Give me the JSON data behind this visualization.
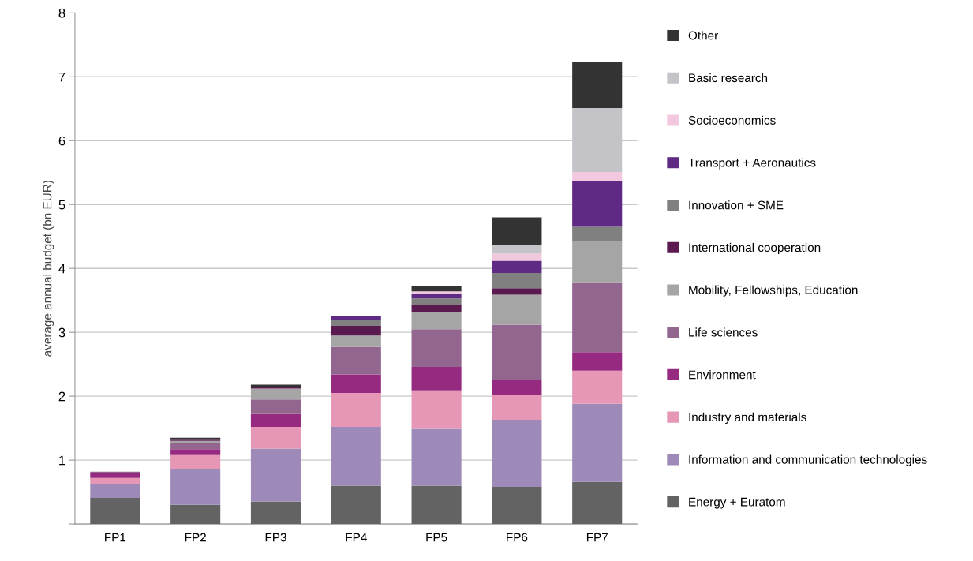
{
  "chart_data": {
    "type": "bar",
    "stacked": true,
    "ylabel": "average annual budget (bn EUR)",
    "categories": [
      "FP1",
      "FP2",
      "FP3",
      "FP4",
      "FP5",
      "FP6",
      "FP7"
    ],
    "ylim": [
      0,
      8
    ],
    "yticks": [
      {
        "value": 0,
        "label": null
      },
      1,
      2,
      3,
      4,
      5,
      6,
      7,
      8
    ],
    "grid": "y",
    "legend": "right",
    "series": [
      {
        "name": "Energy + Euratom",
        "color": "#636363",
        "values": [
          0.41,
          0.3,
          0.35,
          0.6,
          0.6,
          0.58,
          0.66
        ]
      },
      {
        "name": "Information and communication technologies",
        "color": "#9d8ab8",
        "values": [
          0.21,
          0.56,
          0.83,
          0.92,
          0.89,
          1.05,
          1.22
        ]
      },
      {
        "name": "Industry and materials",
        "color": "#e597b5",
        "values": [
          0.1,
          0.22,
          0.34,
          0.53,
          0.6,
          0.39,
          0.52
        ]
      },
      {
        "name": "Environment",
        "color": "#962a80",
        "values": [
          0.07,
          0.09,
          0.2,
          0.29,
          0.37,
          0.24,
          0.29
        ]
      },
      {
        "name": "Life sciences",
        "color": "#93668f",
        "values": [
          0.03,
          0.09,
          0.23,
          0.43,
          0.59,
          0.86,
          1.08
        ]
      },
      {
        "name": "Mobility, Fellowships, Education",
        "color": "#a5a5a5",
        "values": [
          0,
          0.04,
          0.17,
          0.18,
          0.26,
          0.47,
          0.66
        ]
      },
      {
        "name": "International cooperation",
        "color": "#5a1a50",
        "values": [
          0,
          0.02,
          0.03,
          0.15,
          0.12,
          0.1,
          0
        ]
      },
      {
        "name": "Innovation + SME",
        "color": "#808080",
        "values": [
          0,
          0,
          0,
          0.1,
          0.1,
          0.24,
          0.22
        ]
      },
      {
        "name": "Transport + Aeronautics",
        "color": "#5e2a84",
        "values": [
          0,
          0,
          0,
          0.06,
          0.08,
          0.19,
          0.71
        ]
      },
      {
        "name": "Socioeconomics",
        "color": "#f2c8de",
        "values": [
          0,
          0,
          0,
          0,
          0.03,
          0.11,
          0.15
        ]
      },
      {
        "name": "Basic research",
        "color": "#c4c4c8",
        "values": [
          0,
          0,
          0,
          0,
          0,
          0.14,
          1.0
        ]
      },
      {
        "name": "Other",
        "color": "#333333",
        "values": [
          0,
          0.03,
          0.03,
          0,
          0.09,
          0.43,
          0.73
        ]
      }
    ]
  }
}
